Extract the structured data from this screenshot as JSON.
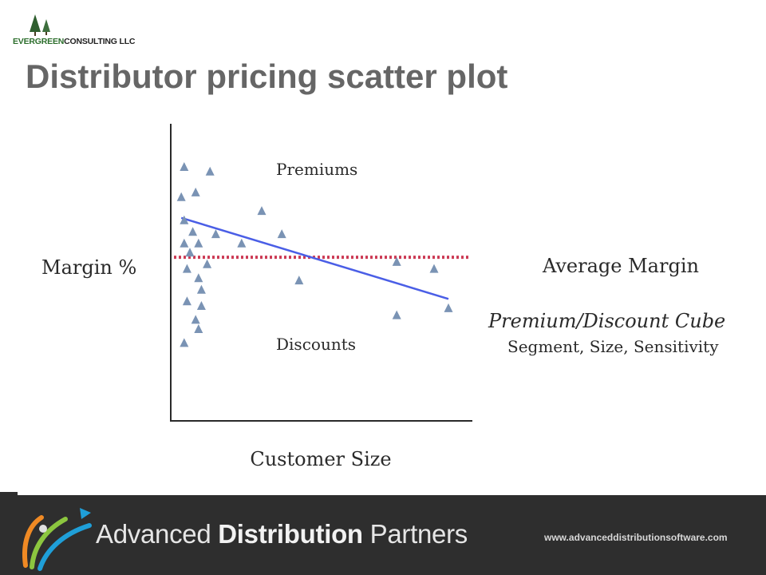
{
  "header": {
    "logo_green": "EVERGREEN",
    "logo_rest": "CONSULTING LLC",
    "title": "Distributor pricing scatter plot"
  },
  "annotations": {
    "premiums": "Premiums",
    "discounts": "Discounts",
    "average_margin": "Average Margin",
    "cube_title": "Premium/Discount  Cube",
    "cube_subtitle": "Segment, Size, Sensitivity"
  },
  "chart_data": {
    "type": "scatter",
    "xlabel": "Customer Size",
    "ylabel": "Margin %",
    "xlim": [
      0,
      100
    ],
    "ylim": [
      0,
      100
    ],
    "axis_ticks": false,
    "grid": false,
    "marker": "triangle",
    "marker_color": "#7a93b4",
    "points": [
      {
        "x": 3,
        "y": 90
      },
      {
        "x": 12,
        "y": 88
      },
      {
        "x": 7,
        "y": 79
      },
      {
        "x": 2,
        "y": 77
      },
      {
        "x": 30,
        "y": 71
      },
      {
        "x": 3,
        "y": 67
      },
      {
        "x": 6,
        "y": 62
      },
      {
        "x": 14,
        "y": 61
      },
      {
        "x": 37,
        "y": 61
      },
      {
        "x": 23,
        "y": 57
      },
      {
        "x": 3,
        "y": 57
      },
      {
        "x": 8,
        "y": 57
      },
      {
        "x": 5,
        "y": 53
      },
      {
        "x": 77,
        "y": 49
      },
      {
        "x": 90,
        "y": 46
      },
      {
        "x": 4,
        "y": 46
      },
      {
        "x": 11,
        "y": 48
      },
      {
        "x": 8,
        "y": 42
      },
      {
        "x": 43,
        "y": 41
      },
      {
        "x": 9,
        "y": 37
      },
      {
        "x": 4,
        "y": 32
      },
      {
        "x": 9,
        "y": 30
      },
      {
        "x": 7,
        "y": 24
      },
      {
        "x": 8,
        "y": 20
      },
      {
        "x": 3,
        "y": 14
      },
      {
        "x": 77,
        "y": 26
      },
      {
        "x": 95,
        "y": 29
      }
    ],
    "series": [
      {
        "type": "trend_line",
        "color": "#4a5ee6",
        "x": [
          2,
          95
        ],
        "y": [
          68,
          33
        ]
      },
      {
        "type": "average_line",
        "color": "#cc3b55",
        "style": "dotted",
        "y": 51
      }
    ]
  },
  "footer": {
    "brand_regular": "Advanced ",
    "brand_bold": "Distribution",
    "brand_end": " Partners",
    "url": "www.advanceddistributionsoftware.com"
  }
}
